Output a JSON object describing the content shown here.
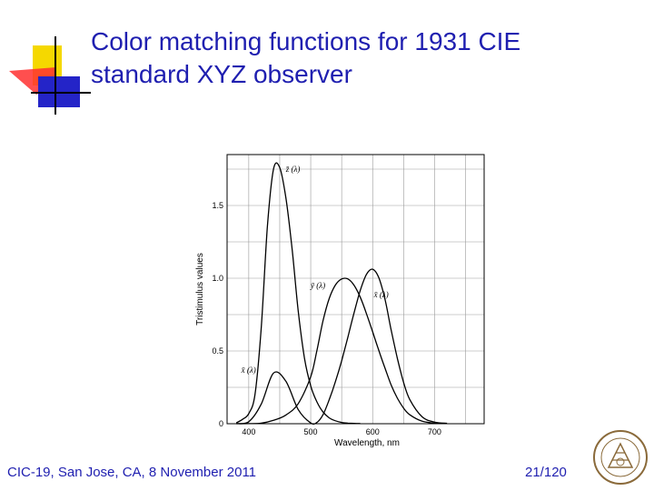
{
  "slide": {
    "title_line1": "Color matching functions for 1931 CIE",
    "title_line2": "standard XYZ observer",
    "footer": "CIC-19, San Jose, CA, 8 November 2011",
    "page_number": "21/120"
  },
  "colors": {
    "title": "#1f1fb0",
    "deco_yellow": "#f5d800",
    "deco_red": "#ff3030",
    "deco_blue": "#2424c8",
    "curve": "#000000"
  },
  "seal_text": "Politecnico di Torino",
  "chart_data": {
    "type": "line",
    "xlabel": "Wavelength, nm",
    "ylabel": "Tristimulus values",
    "xlim": [
      365,
      780
    ],
    "ylim": [
      0,
      1.85
    ],
    "x_ticks": [
      400,
      500,
      600,
      700
    ],
    "y_ticks": [
      0,
      0.5,
      1.0,
      1.5
    ],
    "y_tick_labels": [
      "0",
      "0.5",
      "1.0",
      "1.5"
    ],
    "grid": true,
    "series": [
      {
        "name": "z̄ (λ)",
        "x": [
          380,
          390,
          400,
          410,
          420,
          430,
          440,
          450,
          460,
          470,
          480,
          490,
          500,
          510,
          520,
          530,
          540,
          550,
          560,
          570,
          580
        ],
        "values": [
          0.006,
          0.03,
          0.07,
          0.2,
          0.65,
          1.35,
          1.75,
          1.76,
          1.55,
          1.2,
          0.77,
          0.45,
          0.26,
          0.15,
          0.08,
          0.04,
          0.02,
          0.009,
          0.004,
          0.002,
          0.001
        ]
      },
      {
        "name": "ȳ (λ)",
        "x": [
          380,
          400,
          420,
          440,
          460,
          480,
          500,
          510,
          520,
          530,
          540,
          550,
          560,
          570,
          580,
          590,
          600,
          610,
          620,
          630,
          640,
          650,
          660,
          680,
          700,
          720
        ],
        "values": [
          0.0,
          0.0004,
          0.004,
          0.023,
          0.06,
          0.139,
          0.323,
          0.503,
          0.71,
          0.862,
          0.954,
          0.995,
          0.995,
          0.952,
          0.87,
          0.757,
          0.631,
          0.503,
          0.381,
          0.265,
          0.175,
          0.107,
          0.061,
          0.017,
          0.004,
          0.001
        ]
      },
      {
        "name": "x̄ (λ)",
        "x": [
          380,
          400,
          420,
          440,
          460,
          480,
          500,
          510,
          520,
          530,
          540,
          550,
          560,
          570,
          580,
          590,
          600,
          610,
          620,
          630,
          640,
          650,
          660,
          680,
          700,
          720
        ],
        "values": [
          0.001,
          0.014,
          0.134,
          0.348,
          0.291,
          0.096,
          0.005,
          0.009,
          0.063,
          0.166,
          0.29,
          0.433,
          0.595,
          0.762,
          0.916,
          1.026,
          1.062,
          1.003,
          0.854,
          0.642,
          0.448,
          0.284,
          0.165,
          0.047,
          0.011,
          0.003
        ]
      }
    ],
    "curve_labels": [
      {
        "series": 0,
        "text": "z̄ (λ)",
        "at_x": 460,
        "at_y": 1.73
      },
      {
        "series": 1,
        "text": "ȳ (λ)",
        "at_x": 500,
        "at_y": 0.93
      },
      {
        "series": 2,
        "text": "x̄ (λ)",
        "at_x": 602,
        "at_y": 0.87
      },
      {
        "series": 2,
        "text": "x̄ (λ)",
        "at_x": 388,
        "at_y": 0.35
      }
    ]
  }
}
